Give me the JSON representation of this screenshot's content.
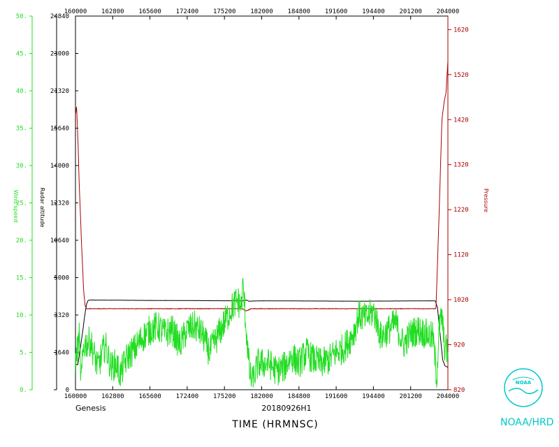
{
  "chart_data": {
    "type": "line",
    "x_axis": {
      "label": "TIME (HRMNSC)",
      "ticks": [
        "160000",
        "162800",
        "165600",
        "172400",
        "175200",
        "182000",
        "184800",
        "191600",
        "194400",
        "201200",
        "204000"
      ]
    },
    "left_axis_wind": {
      "label": "Wind speed",
      "ticks": [
        "0.",
        "5.",
        "10.",
        "15.",
        "20.",
        "25.",
        "30.",
        "35.",
        "40.",
        "45.",
        "50."
      ],
      "range": [
        0,
        50
      ],
      "color": "#22dd22"
    },
    "left_axis_altitude": {
      "label": "Radar altitude",
      "ticks": [
        "0",
        "1640",
        "3320",
        "5000",
        "10640",
        "12320",
        "14000",
        "15640",
        "21320",
        "23000",
        "24840"
      ],
      "color": "#000000"
    },
    "right_axis_pressure": {
      "label": "Pressure",
      "ticks": [
        "820",
        "920",
        "1020",
        "1120",
        "1220",
        "1320",
        "1420",
        "1520",
        "1620"
      ],
      "range": [
        820,
        1650
      ],
      "color": "#aa0000"
    },
    "series": [
      {
        "name": "Radar altitude",
        "color": "#000000",
        "profile": [
          [
            0.0,
            3.5
          ],
          [
            0.6,
            3.3
          ],
          [
            1.0,
            4.5
          ],
          [
            2.0,
            8.0
          ],
          [
            2.5,
            10.0
          ],
          [
            3.0,
            11.5
          ],
          [
            3.4,
            11.95
          ],
          [
            4,
            12.0
          ],
          [
            20,
            11.95
          ],
          [
            45,
            11.9
          ],
          [
            46,
            12.0
          ],
          [
            46.5,
            11.85
          ],
          [
            50,
            11.9
          ],
          [
            76,
            11.85
          ],
          [
            96,
            11.9
          ],
          [
            96.6,
            11.9
          ],
          [
            97.2,
            11.0
          ],
          [
            98,
            7.0
          ],
          [
            98.6,
            4.0
          ],
          [
            99.2,
            3.2
          ],
          [
            100,
            3.0
          ]
        ]
      },
      {
        "name": "Pressure",
        "color": "#aa0000",
        "profile": [
          [
            0.0,
            1430
          ],
          [
            0.3,
            1450
          ],
          [
            0.6,
            1390
          ],
          [
            1.0,
            1280
          ],
          [
            1.6,
            1150
          ],
          [
            2.2,
            1040
          ],
          [
            2.6,
            1005
          ],
          [
            3.0,
            1000
          ],
          [
            45,
            1000
          ],
          [
            45.6,
            995
          ],
          [
            46.5,
            997
          ],
          [
            47,
            1000
          ],
          [
            96.3,
            1000
          ],
          [
            96.8,
            1000
          ],
          [
            97.6,
            1200
          ],
          [
            98.4,
            1420
          ],
          [
            99,
            1460
          ],
          [
            99.5,
            1480
          ],
          [
            100,
            1550
          ]
        ]
      },
      {
        "name": "Wind speed",
        "color": "#22dd22",
        "profile": [
          [
            0,
            3.5
          ],
          [
            1,
            7
          ],
          [
            1.5,
            1
          ],
          [
            2.2,
            6
          ],
          [
            4,
            6.5
          ],
          [
            6,
            3
          ],
          [
            8,
            6
          ],
          [
            9.5,
            3
          ],
          [
            11,
            3.5
          ],
          [
            12,
            2
          ],
          [
            14,
            4.5
          ],
          [
            16,
            5.5
          ],
          [
            18,
            7
          ],
          [
            20,
            8
          ],
          [
            22,
            8.5
          ],
          [
            24,
            7.5
          ],
          [
            26,
            8
          ],
          [
            28,
            6
          ],
          [
            30,
            8
          ],
          [
            32,
            8.5
          ],
          [
            34,
            7.5
          ],
          [
            36,
            5
          ],
          [
            38,
            7
          ],
          [
            40,
            9
          ],
          [
            42,
            11
          ],
          [
            43.5,
            12
          ],
          [
            44.5,
            11
          ],
          [
            45,
            14
          ],
          [
            46,
            7
          ],
          [
            46.8,
            2
          ],
          [
            47.5,
            1
          ],
          [
            49,
            3.5
          ],
          [
            52,
            3.5
          ],
          [
            54,
            2.5
          ],
          [
            56,
            3
          ],
          [
            58,
            4.5
          ],
          [
            60,
            3.5
          ],
          [
            62,
            5
          ],
          [
            64,
            4
          ],
          [
            66,
            3.5
          ],
          [
            68,
            4
          ],
          [
            70,
            5
          ],
          [
            72,
            5.5
          ],
          [
            74,
            7
          ],
          [
            75,
            8
          ],
          [
            76,
            10
          ],
          [
            78,
            9.5
          ],
          [
            80,
            10.5
          ],
          [
            81,
            9
          ],
          [
            82,
            7
          ],
          [
            84,
            8
          ],
          [
            86,
            9
          ],
          [
            88,
            6
          ],
          [
            90,
            7.5
          ],
          [
            92,
            8
          ],
          [
            94,
            7.5
          ],
          [
            96,
            7
          ],
          [
            97,
            1.5
          ],
          [
            97.6,
            8
          ],
          [
            98.4,
            10
          ],
          [
            99,
            6
          ],
          [
            100,
            5
          ]
        ]
      }
    ],
    "date_label": "20180926H1",
    "bottom_left_label": "Genesis",
    "logo_text": "NOAA/HRD",
    "logo_badge": "NOAA"
  }
}
